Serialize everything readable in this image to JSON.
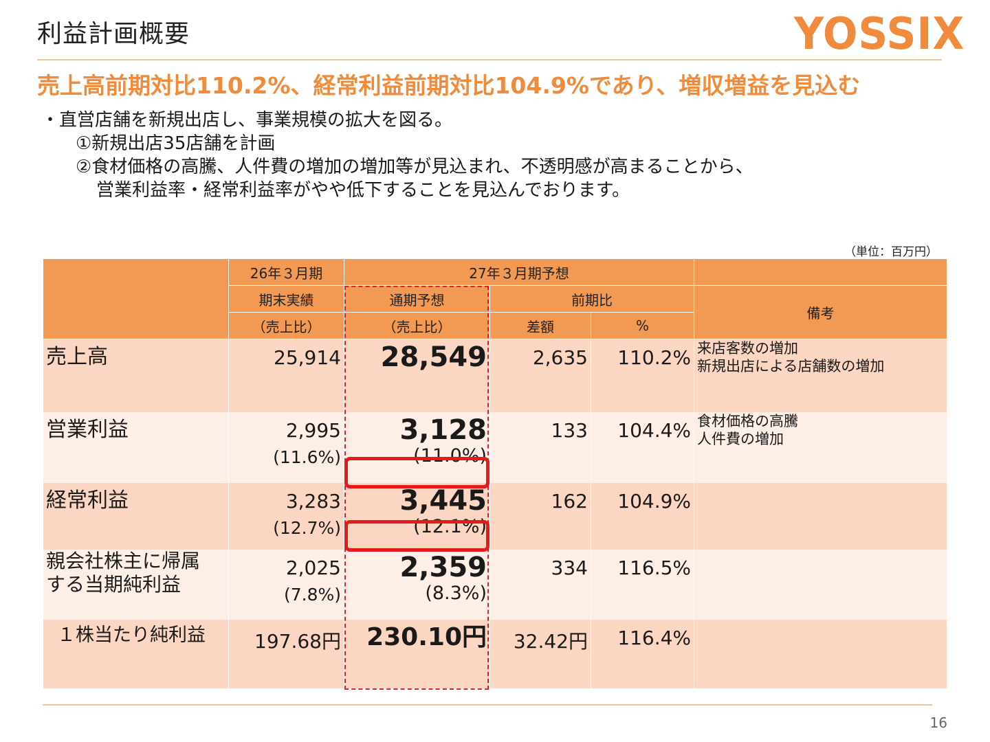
{
  "header": {
    "title": "利益計画概要",
    "logo_text": "YOSSIX",
    "headline": "売上高前期対比110.2%、経常利益前期対比104.9%であり、増収増益を見込む"
  },
  "bullets": {
    "line1": "・直営店舗を新規出店し、事業規模の拡大を図る。",
    "line2": "①新規出店35店舗を計画",
    "line3": "②食材価格の高騰、人件費の増加の増加等が見込まれ、不透明感が高まることから、",
    "line4": "営業利益率・経常利益率がやや低下することを見込んでおります。"
  },
  "unit": "（単位：百万円）",
  "table": {
    "headers": {
      "fy26": "26年３月期",
      "fy27": "27年３月期予想",
      "actual": "期末実績",
      "forecast": "通期予想",
      "yoy": "前期比",
      "ratio_actual": "（売上比）",
      "ratio_forecast": "（売上比）",
      "diff": "差額",
      "pct": "%",
      "notes": "備考"
    },
    "rows": [
      {
        "label": "売上高",
        "actual": "25,914",
        "actual_ratio": "",
        "forecast": "28,549",
        "forecast_ratio": "",
        "diff": "2,635",
        "pct": "110.2%",
        "note1": "来店客数の増加",
        "note2": "新規出店による店舗数の増加"
      },
      {
        "label": "営業利益",
        "actual": "2,995",
        "actual_ratio": "(11.6%)",
        "forecast": "3,128",
        "forecast_ratio": "(11.0%)",
        "diff": "133",
        "pct": "104.4%",
        "note1": "食材価格の高騰",
        "note2": "人件費の増加"
      },
      {
        "label": "経常利益",
        "actual": "3,283",
        "actual_ratio": "(12.7%)",
        "forecast": "3,445",
        "forecast_ratio": "(12.1%)",
        "diff": "162",
        "pct": "104.9%",
        "note1": "",
        "note2": ""
      },
      {
        "label": "親会社株主に帰属する当期純利益",
        "label_line1": "親会社株主に帰属",
        "label_line2": "する当期純利益",
        "actual": "2,025",
        "actual_ratio": "(7.8%)",
        "forecast": "2,359",
        "forecast_ratio": "(8.3%)",
        "diff": "334",
        "pct": "116.5%",
        "note1": "",
        "note2": ""
      },
      {
        "label": "１株当たり純利益",
        "actual": "197.68円",
        "actual_ratio": "",
        "forecast": "230.10円",
        "forecast_ratio": "",
        "diff": "32.42円",
        "pct": "116.4%",
        "note1": "",
        "note2": ""
      }
    ]
  },
  "footer": {
    "page_number": "16"
  },
  "colors": {
    "accent": "#ef8b3a",
    "header_bg": "#f29a53",
    "row_dark": "#fbd6c2",
    "row_light": "#fdeee6",
    "highlight": "#e21b1b"
  }
}
